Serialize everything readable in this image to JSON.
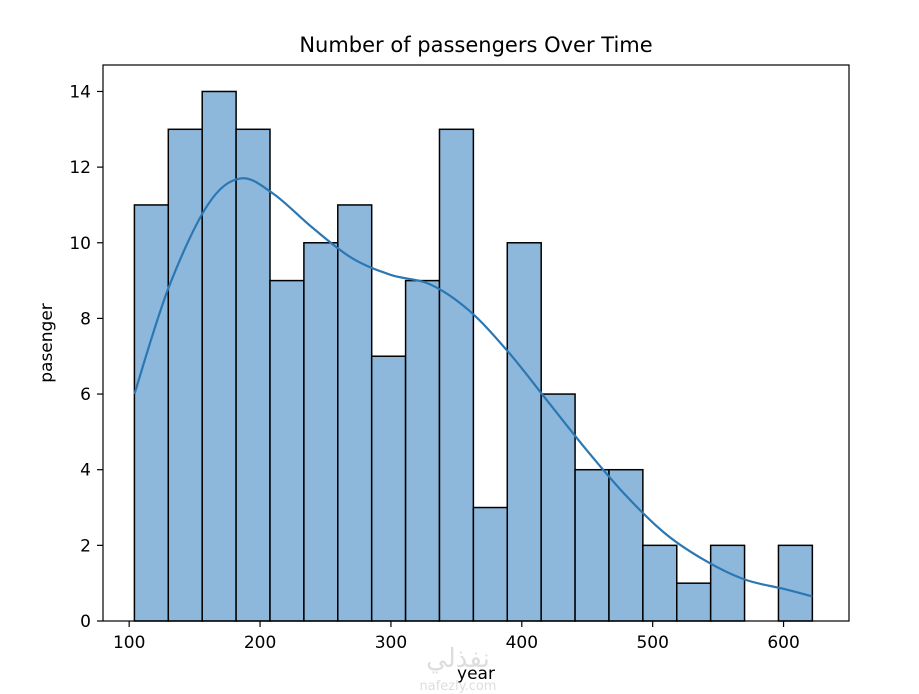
{
  "chart_data": {
    "type": "bar",
    "subtype": "histogram-with-kde",
    "title": "Number of passengers Over Time",
    "xlabel": "year",
    "ylabel": "pasenger",
    "xlim": [
      80,
      650
    ],
    "ylim": [
      0,
      14.7
    ],
    "xticks": [
      100,
      200,
      300,
      400,
      500,
      600
    ],
    "yticks": [
      0,
      2,
      4,
      6,
      8,
      10,
      12,
      14
    ],
    "bin_start": 104,
    "bin_width": 25.9,
    "values": [
      11,
      13,
      14,
      13,
      9,
      10,
      11,
      7,
      9,
      13,
      3,
      10,
      6,
      4,
      4,
      2,
      1,
      2,
      0,
      2
    ],
    "kde": {
      "x": [
        104,
        130,
        160,
        185,
        210,
        240,
        270,
        300,
        330,
        360,
        390,
        420,
        450,
        480,
        510,
        540,
        570,
        600,
        622
      ],
      "y": [
        6.0,
        8.8,
        11.0,
        11.7,
        11.3,
        10.4,
        9.6,
        9.15,
        8.9,
        8.2,
        7.1,
        5.8,
        4.5,
        3.3,
        2.3,
        1.6,
        1.1,
        0.85,
        0.65
      ]
    },
    "bar_color": "#8db8dc",
    "line_color": "#2b77b3",
    "grid": false,
    "legend": "none"
  },
  "watermark": {
    "text": "نفذلي",
    "sub": "nafezly.com"
  }
}
